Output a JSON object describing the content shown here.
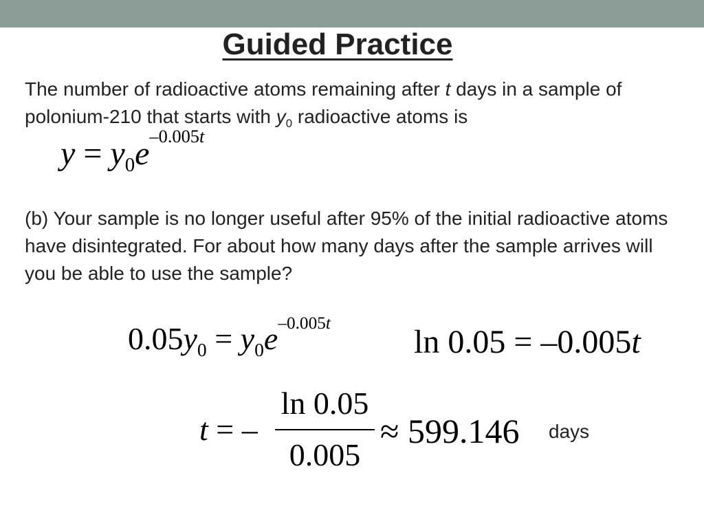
{
  "slide": {
    "title": "Guided Practice",
    "intro_1": "The number of radioactive atoms remaining after ",
    "intro_t": "t",
    "intro_2": " days in a sample of polonium-210 that starts with ",
    "intro_y": "y",
    "intro_y_sub": "0",
    "intro_3": " radioactive atoms is",
    "part_b": "(b) Your sample is no longer useful after 95% of the initial radioactive atoms have disintegrated.  For about how many days after the sample arrives will you be able to use the sample?"
  },
  "equations": {
    "model": {
      "y": "y",
      "eq": " = ",
      "y0": "y",
      "y0_sub": "0",
      "e": "e",
      "exp": "–0.005",
      "exp_t": "t"
    },
    "step1": {
      "coef": "0.05",
      "y": "y",
      "sub": "0",
      "eq": " = ",
      "y0": "y",
      "y0_sub": "0",
      "e": "e",
      "exp": "–0.005",
      "exp_t": "t"
    },
    "step2": {
      "ln": "ln",
      "val": "0.05",
      "eq": " = –0.005",
      "t": "t"
    },
    "step3": {
      "t": "t",
      "lhs": " = –",
      "numerator": "ln 0.05",
      "denominator": "0.005",
      "approx": "≈ 599.146",
      "unit": "days"
    }
  }
}
